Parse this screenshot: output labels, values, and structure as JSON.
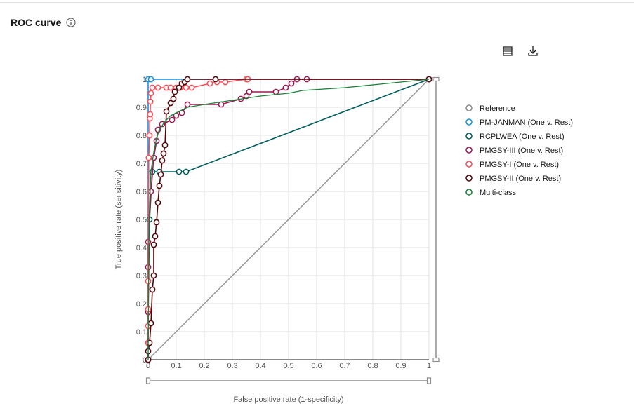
{
  "header": {
    "title": "ROC curve"
  },
  "toolbar": {
    "table_icon": "table-icon",
    "download_icon": "download-icon"
  },
  "chart_data": {
    "type": "line",
    "xlabel": "False positive rate (1-specificity)",
    "ylabel": "True positive rate (sensitivity)",
    "xlim": [
      0,
      1
    ],
    "ylim": [
      0,
      1
    ],
    "x_ticks": [
      "0",
      "0.1",
      "0.2",
      "0.3",
      "0.4",
      "0.5",
      "0.6",
      "0.7",
      "0.8",
      "0.9",
      "1"
    ],
    "y_ticks": [
      "0",
      "0.1",
      "0.2",
      "0.3",
      "0.4",
      "0.5",
      "0.6",
      "0.7",
      "0.8",
      "0.9",
      "1"
    ],
    "grid": true,
    "legend_position": "right",
    "series": [
      {
        "name": "Reference",
        "color": "#8d8d8d",
        "markers": false,
        "points": [
          [
            0,
            0
          ],
          [
            1,
            1
          ]
        ]
      },
      {
        "name": "PM-JANMAN (One v. Rest)",
        "color": "#1192e8",
        "markers": true,
        "points": [
          [
            0,
            0
          ],
          [
            0,
            1
          ],
          [
            0.01,
            1
          ],
          [
            1,
            1
          ]
        ]
      },
      {
        "name": "RCPLWEA (One v. Rest)",
        "color": "#005d5d",
        "markers": true,
        "points": [
          [
            0,
            0
          ],
          [
            0,
            0.17
          ],
          [
            0.005,
            0.5
          ],
          [
            0.015,
            0.67
          ],
          [
            0.04,
            0.67
          ],
          [
            0.11,
            0.67
          ],
          [
            0.135,
            0.67
          ],
          [
            1,
            1
          ]
        ]
      },
      {
        "name": "PMGSY-III (One v. Rest)",
        "color": "#9f1853",
        "markers": true,
        "points": [
          [
            0,
            0
          ],
          [
            0,
            0.17
          ],
          [
            0,
            0.33
          ],
          [
            0,
            0.42
          ],
          [
            0.01,
            0.6
          ],
          [
            0.02,
            0.72
          ],
          [
            0.03,
            0.78
          ],
          [
            0.035,
            0.82
          ],
          [
            0.05,
            0.84
          ],
          [
            0.085,
            0.855
          ],
          [
            0.1,
            0.87
          ],
          [
            0.12,
            0.88
          ],
          [
            0.14,
            0.91
          ],
          [
            0.26,
            0.91
          ],
          [
            0.33,
            0.93
          ],
          [
            0.35,
            0.94
          ],
          [
            0.36,
            0.955
          ],
          [
            0.455,
            0.955
          ],
          [
            0.49,
            0.97
          ],
          [
            0.51,
            0.985
          ],
          [
            0.53,
            1
          ],
          [
            0.565,
            1
          ],
          [
            1,
            1
          ]
        ]
      },
      {
        "name": "PMGSY-I (One v. Rest)",
        "color": "#fa4d56",
        "markers": true,
        "points": [
          [
            0,
            0
          ],
          [
            0,
            0.06
          ],
          [
            0,
            0.12
          ],
          [
            0,
            0.18
          ],
          [
            0,
            0.28
          ],
          [
            0.002,
            0.72
          ],
          [
            0.005,
            0.8
          ],
          [
            0.006,
            0.86
          ],
          [
            0.007,
            0.875
          ],
          [
            0.008,
            0.92
          ],
          [
            0.01,
            0.95
          ],
          [
            0.015,
            0.97
          ],
          [
            0.035,
            0.97
          ],
          [
            0.065,
            0.97
          ],
          [
            0.08,
            0.97
          ],
          [
            0.1,
            0.97
          ],
          [
            0.115,
            0.97
          ],
          [
            0.135,
            0.97
          ],
          [
            0.155,
            0.97
          ],
          [
            0.22,
            0.985
          ],
          [
            0.245,
            0.99
          ],
          [
            0.275,
            0.99
          ],
          [
            0.35,
            1
          ],
          [
            0.355,
            1
          ],
          [
            1,
            1
          ]
        ]
      },
      {
        "name": "PMGSY-II (One v. Rest)",
        "color": "#520408",
        "markers": true,
        "points": [
          [
            0,
            0
          ],
          [
            0,
            0.03
          ],
          [
            0.005,
            0.06
          ],
          [
            0.01,
            0.13
          ],
          [
            0.015,
            0.25
          ],
          [
            0.02,
            0.3
          ],
          [
            0.02,
            0.41
          ],
          [
            0.025,
            0.44
          ],
          [
            0.03,
            0.49
          ],
          [
            0.035,
            0.56
          ],
          [
            0.04,
            0.62
          ],
          [
            0.045,
            0.66
          ],
          [
            0.05,
            0.71
          ],
          [
            0.055,
            0.735
          ],
          [
            0.06,
            0.765
          ],
          [
            0.065,
            0.885
          ],
          [
            0.08,
            0.915
          ],
          [
            0.09,
            0.93
          ],
          [
            0.095,
            0.955
          ],
          [
            0.11,
            0.97
          ],
          [
            0.12,
            0.985
          ],
          [
            0.13,
            0.99
          ],
          [
            0.14,
            1
          ],
          [
            0.24,
            1
          ],
          [
            1,
            1
          ]
        ]
      },
      {
        "name": "Multi-class",
        "color": "#198038",
        "markers": false,
        "points": [
          [
            0,
            0
          ],
          [
            0.003,
            0.5
          ],
          [
            0.01,
            0.67
          ],
          [
            0.02,
            0.74
          ],
          [
            0.03,
            0.79
          ],
          [
            0.04,
            0.82
          ],
          [
            0.06,
            0.85
          ],
          [
            0.08,
            0.87
          ],
          [
            0.1,
            0.88
          ],
          [
            0.14,
            0.9
          ],
          [
            0.2,
            0.91
          ],
          [
            0.3,
            0.925
          ],
          [
            0.4,
            0.94
          ],
          [
            0.5,
            0.95
          ],
          [
            0.55,
            0.96
          ],
          [
            0.7,
            0.97
          ],
          [
            0.85,
            0.985
          ],
          [
            1,
            1
          ]
        ]
      }
    ]
  }
}
